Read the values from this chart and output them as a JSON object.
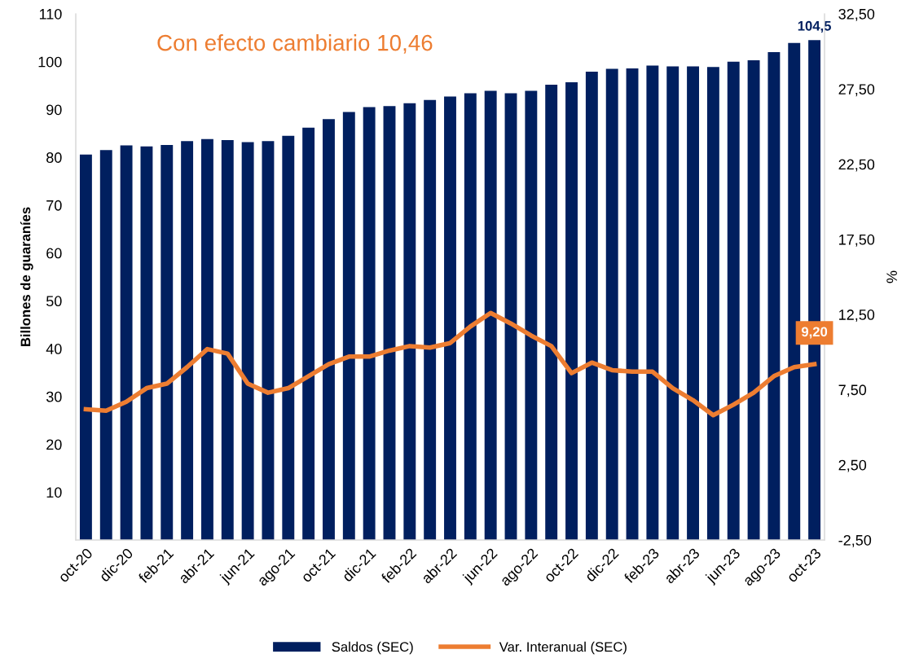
{
  "chart_data": {
    "type": "bar",
    "categories": [
      "oct-20",
      null,
      "dic-20",
      null,
      "feb-21",
      null,
      "abr-21",
      null,
      "jun-21",
      null,
      "ago-21",
      null,
      "oct-21",
      null,
      "dic-21",
      null,
      "feb-22",
      null,
      "abr-22",
      null,
      "jun-22",
      null,
      "ago-22",
      null,
      "oct-22",
      null,
      "dic-22",
      null,
      "feb-23",
      null,
      "abr-23",
      null,
      "jun-23",
      null,
      "ago-23",
      null,
      "oct-23"
    ],
    "series": [
      {
        "name": "Saldos (SEC)",
        "color": "#001f5f",
        "values": [
          80.6,
          81.5,
          82.5,
          82.3,
          82.6,
          83.4,
          83.8,
          83.6,
          83.2,
          83.4,
          84.5,
          86.2,
          88.0,
          89.5,
          90.5,
          90.7,
          91.3,
          92.0,
          92.7,
          93.4,
          93.9,
          93.4,
          93.9,
          95.2,
          95.7,
          97.9,
          98.5,
          98.6,
          99.2,
          99.0,
          99.0,
          98.9,
          100.0,
          100.3,
          102.0,
          103.9,
          104.5
        ],
        "value_labels": [
          null,
          null,
          null,
          null,
          null,
          null,
          null,
          null,
          null,
          null,
          null,
          null,
          null,
          null,
          null,
          null,
          null,
          null,
          null,
          null,
          null,
          null,
          null,
          null,
          null,
          null,
          null,
          null,
          null,
          null,
          null,
          null,
          null,
          null,
          null,
          null,
          "104,5"
        ]
      },
      {
        "name": "Var. Interanual (SEC)",
        "type": "line",
        "axis": "y2",
        "color": "#ed7d31",
        "values": [
          6.2,
          6.1,
          6.7,
          7.6,
          7.9,
          9.0,
          10.2,
          9.9,
          7.9,
          7.3,
          7.6,
          8.4,
          9.2,
          9.7,
          9.7,
          10.1,
          10.4,
          10.3,
          10.6,
          11.7,
          12.6,
          11.9,
          11.1,
          10.4,
          8.6,
          9.3,
          8.8,
          8.7,
          8.7,
          7.6,
          6.8,
          5.8,
          6.5,
          7.3,
          8.4,
          9.0,
          9.2
        ],
        "value_labels": [
          null,
          null,
          null,
          null,
          null,
          null,
          null,
          null,
          null,
          null,
          null,
          null,
          null,
          null,
          null,
          null,
          null,
          null,
          null,
          null,
          null,
          null,
          null,
          null,
          null,
          null,
          null,
          null,
          null,
          null,
          null,
          null,
          null,
          null,
          null,
          null,
          "9,20"
        ]
      }
    ],
    "ylabel": "Billones de guaraníes",
    "y2label": "%",
    "ylim": [
      0,
      110
    ],
    "yticks": [
      10,
      20,
      30,
      40,
      50,
      60,
      70,
      80,
      90,
      100,
      110
    ],
    "y2lim": [
      -2.5,
      32.5
    ],
    "y2ticks": [
      {
        "value": -2.5,
        "label": "-2,50"
      },
      {
        "value": 2.5,
        "label": "2,50"
      },
      {
        "value": 7.5,
        "label": "7,50"
      },
      {
        "value": 12.5,
        "label": "12,50"
      },
      {
        "value": 17.5,
        "label": "17,50"
      },
      {
        "value": 22.5,
        "label": "22,50"
      },
      {
        "value": 27.5,
        "label": "27,50"
      },
      {
        "value": 32.5,
        "label": "32,50"
      }
    ],
    "annotations": [
      "Con efecto cambiario 10,46"
    ],
    "legend": "bottom",
    "grid": false,
    "marker": "none",
    "line_style": "solid"
  }
}
